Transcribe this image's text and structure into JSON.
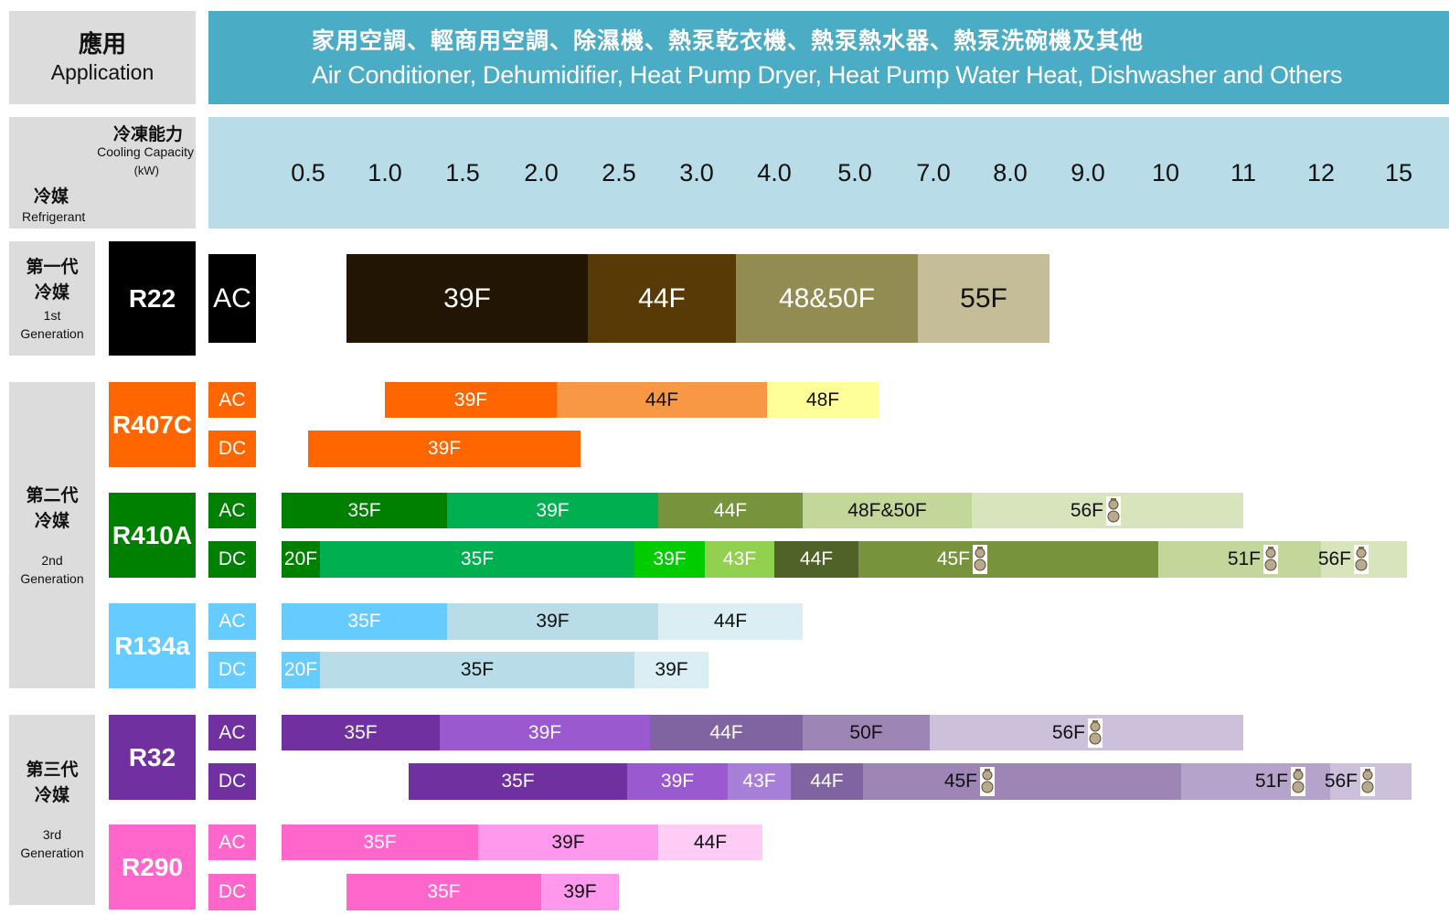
{
  "application": {
    "label_zh": "應用",
    "label_en": "Application",
    "title_zh": "家用空調、輕商用空調、除濕機、熱泵乾衣機、熱泵熱水器、熱泵洗碗機及其他",
    "title_en": "Air Conditioner, Dehumidifier, Heat Pump Dryer, Heat Pump Water Heat, Dishwasher and Others"
  },
  "corner": {
    "capacity_zh": "冷凍能力",
    "capacity_en": "Cooling Capacity",
    "capacity_unit": "(kW)",
    "refrigerant_zh": "冷媒",
    "refrigerant_en": "Refrigerant"
  },
  "generations": [
    {
      "zh": "第一代 冷媒",
      "en": "1st Generation"
    },
    {
      "zh": "第二代 冷媒",
      "en": "2nd Generation"
    },
    {
      "zh": "第三代 冷媒",
      "en": "3rd Generation"
    }
  ],
  "colors": {
    "header": "#4bacc6",
    "axis": "#b8dde8",
    "label_bg": "#dcdcdc"
  },
  "chart_data": {
    "type": "bar",
    "x_axis_ticks": [
      "0.5",
      "1.0",
      "1.5",
      "2.0",
      "2.5",
      "3.0",
      "4.0",
      "5.0",
      "7.0",
      "8.0",
      "9.0",
      "10",
      "11",
      "12",
      "15"
    ],
    "refrigerants": [
      {
        "name": "R22",
        "color": "#000000",
        "text_color": "#ffffff",
        "rows": [
          {
            "type": "AC",
            "type_bg": "#000000",
            "type_fg": "#ffffff",
            "fontsize": 30,
            "segments": [
              {
                "label": "39F",
                "start": 0.75,
                "end": 2.3,
                "color": "#231504",
                "fg": "#ffffff"
              },
              {
                "label": "44F",
                "start": 2.3,
                "end": 3.5,
                "color": "#573a06",
                "fg": "#ffffff"
              },
              {
                "label": "48&50F",
                "start": 3.5,
                "end": 6.6,
                "color": "#928c53",
                "fg": "#ffffff"
              },
              {
                "label": "55F",
                "start": 6.6,
                "end": 8.5,
                "color": "#c4bd98",
                "fg": "#111111"
              }
            ]
          }
        ]
      },
      {
        "name": "R407C",
        "color": "#ff6600",
        "text_color": "#ffffff",
        "rows": [
          {
            "type": "AC",
            "type_bg": "#ff6600",
            "type_fg": "#ffffff",
            "fontsize": 21,
            "segments": [
              {
                "label": "39F",
                "start": 1.0,
                "end": 2.1,
                "color": "#ff6600",
                "fg": "#ffffff"
              },
              {
                "label": "44F",
                "start": 2.1,
                "end": 3.9,
                "color": "#f89844",
                "fg": "#111111"
              },
              {
                "label": "48F",
                "start": 3.9,
                "end": 5.6,
                "color": "#ffff99",
                "fg": "#111111"
              }
            ]
          },
          {
            "type": "DC",
            "type_bg": "#ff6600",
            "type_fg": "#ffffff",
            "fontsize": 21,
            "segments": [
              {
                "label": "39F",
                "start": 0.5,
                "end": 2.25,
                "color": "#ff6600",
                "fg": "#ffffff"
              }
            ]
          }
        ]
      },
      {
        "name": "R410A",
        "color": "#008000",
        "text_color": "#ffffff",
        "rows": [
          {
            "type": "AC",
            "type_bg": "#008000",
            "type_fg": "#ffffff",
            "fontsize": 21,
            "segments": [
              {
                "label": "35F",
                "start": 0.33,
                "end": 1.4,
                "color": "#008000",
                "fg": "#ffffff"
              },
              {
                "label": "39F",
                "start": 1.4,
                "end": 2.75,
                "color": "#00b050",
                "fg": "#ffffff"
              },
              {
                "label": "44F",
                "start": 2.75,
                "end": 4.35,
                "color": "#77933c",
                "fg": "#ffffff"
              },
              {
                "label": "48F&50F",
                "start": 4.35,
                "end": 7.5,
                "color": "#c4d79b",
                "fg": "#111111"
              },
              {
                "label": "56F",
                "start": 7.5,
                "end": 11.0,
                "color": "#d8e4bc",
                "fg": "#111111",
                "gourd": true,
                "align": "gourd"
              }
            ]
          },
          {
            "type": "DC",
            "type_bg": "#008000",
            "type_fg": "#ffffff",
            "fontsize": 21,
            "segments": [
              {
                "label": "20F",
                "start": 0.33,
                "end": 0.58,
                "color": "#008000",
                "fg": "#ffffff"
              },
              {
                "label": "35F",
                "start": 0.58,
                "end": 2.6,
                "color": "#00b050",
                "fg": "#ffffff"
              },
              {
                "label": "39F",
                "start": 2.6,
                "end": 3.1,
                "color": "#00cc00",
                "fg": "#ffffff"
              },
              {
                "label": "43F",
                "start": 3.1,
                "end": 4.0,
                "color": "#92d050",
                "fg": "#ffffff"
              },
              {
                "label": "44F",
                "start": 4.0,
                "end": 5.1,
                "color": "#4f6228",
                "fg": "#ffffff"
              },
              {
                "label": "45F",
                "start": 5.1,
                "end": 9.9,
                "color": "#77933c",
                "fg": "#ffffff",
                "gourd": true,
                "split": 7.7,
                "align": "gourd"
              },
              {
                "label": "51F",
                "start": 9.9,
                "end": 12.0,
                "color": "#c4d79b",
                "fg": "#111111",
                "gourd": true,
                "split": 11.45,
                "align": "gourd"
              },
              {
                "label": "56F",
                "start": 12.0,
                "end": 15.3,
                "color": "#d8e4bc",
                "fg": "#111111",
                "gourd": true,
                "align": "gourd"
              }
            ]
          }
        ]
      },
      {
        "name": "R134a",
        "color": "#66ccff",
        "text_color": "#ffffff",
        "rows": [
          {
            "type": "AC",
            "type_bg": "#66ccff",
            "type_fg": "#ffffff",
            "fontsize": 21,
            "segments": [
              {
                "label": "35F",
                "start": 0.33,
                "end": 1.4,
                "color": "#66ccff",
                "fg": "#ffffff"
              },
              {
                "label": "39F",
                "start": 1.4,
                "end": 2.75,
                "color": "#b8dde8",
                "fg": "#111111"
              },
              {
                "label": "44F",
                "start": 2.75,
                "end": 4.35,
                "color": "#daeef3",
                "fg": "#111111"
              }
            ]
          },
          {
            "type": "DC",
            "type_bg": "#66ccff",
            "type_fg": "#ffffff",
            "fontsize": 21,
            "segments": [
              {
                "label": "20F",
                "start": 0.33,
                "end": 0.58,
                "color": "#66ccff",
                "fg": "#ffffff"
              },
              {
                "label": "35F",
                "start": 0.58,
                "end": 2.6,
                "color": "#b8dde8",
                "fg": "#111111"
              },
              {
                "label": "39F",
                "start": 2.6,
                "end": 3.15,
                "color": "#daeef3",
                "fg": "#111111"
              }
            ]
          }
        ]
      },
      {
        "name": "R32",
        "color": "#7030a0",
        "text_color": "#ffffff",
        "rows": [
          {
            "type": "AC",
            "type_bg": "#7030a0",
            "type_fg": "#ffffff",
            "fontsize": 21,
            "segments": [
              {
                "label": "35F",
                "start": 0.33,
                "end": 1.35,
                "color": "#7030a0",
                "fg": "#ffffff"
              },
              {
                "label": "39F",
                "start": 1.35,
                "end": 2.7,
                "color": "#9b59d0",
                "fg": "#ffffff"
              },
              {
                "label": "44F",
                "start": 2.7,
                "end": 4.35,
                "color": "#8064a2",
                "fg": "#ffffff"
              },
              {
                "label": "50F",
                "start": 4.35,
                "end": 6.9,
                "color": "#9d85b5",
                "fg": "#111111"
              },
              {
                "label": "56F",
                "start": 6.9,
                "end": 11.0,
                "color": "#ccc0da",
                "fg": "#111111",
                "gourd": true,
                "align": "gourd"
              }
            ]
          },
          {
            "type": "DC",
            "type_bg": "#7030a0",
            "type_fg": "#ffffff",
            "fontsize": 21,
            "segments": [
              {
                "label": "35F",
                "start": 1.15,
                "end": 2.55,
                "color": "#7030a0",
                "fg": "#ffffff"
              },
              {
                "label": "39F",
                "start": 2.55,
                "end": 3.4,
                "color": "#9b59d0",
                "fg": "#ffffff"
              },
              {
                "label": "43F",
                "start": 3.4,
                "end": 4.2,
                "color": "#a87fd8",
                "fg": "#ffffff"
              },
              {
                "label": "44F",
                "start": 4.2,
                "end": 5.2,
                "color": "#8064a2",
                "fg": "#ffffff"
              },
              {
                "label": "45F",
                "start": 5.2,
                "end": 10.2,
                "color": "#9d85b5",
                "fg": "#111111",
                "gourd": true,
                "split": 7.8,
                "align": "gourd"
              },
              {
                "label": "51F",
                "start": 10.2,
                "end": 12.35,
                "color": "#b6a3cb",
                "fg": "#111111",
                "gourd": true,
                "split": 11.8,
                "align": "gourd"
              },
              {
                "label": "56F",
                "start": 12.35,
                "end": 15.5,
                "color": "#ccc0da",
                "fg": "#111111",
                "gourd": true,
                "align": "gourd"
              }
            ]
          }
        ]
      },
      {
        "name": "R290",
        "color": "#ff66cc",
        "text_color": "#ffffff",
        "rows": [
          {
            "type": "AC",
            "type_bg": "#ff66cc",
            "type_fg": "#ffffff",
            "fontsize": 21,
            "segments": [
              {
                "label": "35F",
                "start": 0.33,
                "end": 1.6,
                "color": "#ff66cc",
                "fg": "#ffffff"
              },
              {
                "label": "39F",
                "start": 1.6,
                "end": 2.75,
                "color": "#ff99ee",
                "fg": "#111111"
              },
              {
                "label": "44F",
                "start": 2.75,
                "end": 3.85,
                "color": "#ffccf5",
                "fg": "#111111"
              }
            ]
          },
          {
            "type": "DC",
            "type_bg": "#ff66cc",
            "type_fg": "#ffffff",
            "fontsize": 21,
            "segments": [
              {
                "label": "35F",
                "start": 0.75,
                "end": 2.0,
                "color": "#ff66cc",
                "fg": "#ffffff"
              },
              {
                "label": "39F",
                "start": 2.0,
                "end": 2.5,
                "color": "#ff99ee",
                "fg": "#111111"
              }
            ]
          }
        ]
      }
    ]
  }
}
